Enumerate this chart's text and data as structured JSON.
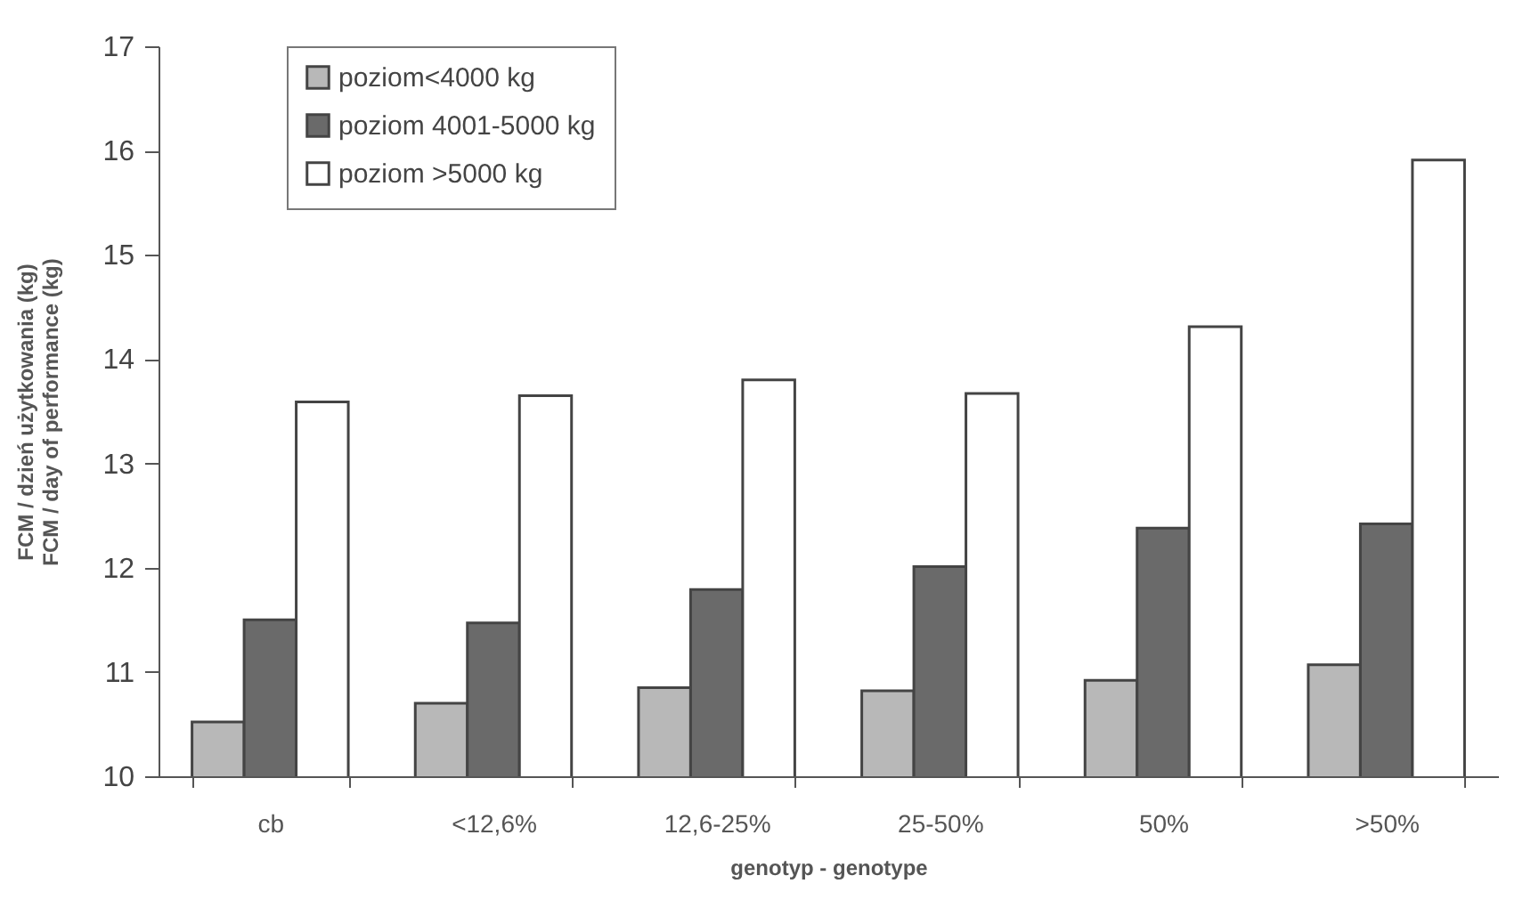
{
  "chart_data": {
    "type": "bar",
    "xlabel": "genotyp - genotype",
    "ylabel": "FCM / dzień użytkowania (kg)\nFCM / day of performance (kg)",
    "categories": [
      "cb",
      "<12,6%",
      "12,6-25%",
      "25-50%",
      "50%",
      ">50%"
    ],
    "series": [
      {
        "name": "poziom<4000 kg",
        "color": "#b8b8b8",
        "values": [
          10.52,
          10.7,
          10.85,
          10.82,
          10.92,
          11.07
        ]
      },
      {
        "name": "poziom 4001-5000 kg",
        "color": "#6a6a6a",
        "values": [
          11.5,
          11.47,
          11.79,
          12.01,
          12.38,
          12.42
        ]
      },
      {
        "name": "poziom >5000 kg",
        "color": "#ffffff",
        "values": [
          13.59,
          13.65,
          13.8,
          13.67,
          14.31,
          15.91
        ]
      }
    ],
    "ylim": [
      10,
      17
    ],
    "yticks": [
      10,
      11,
      12,
      13,
      14,
      15,
      16,
      17
    ],
    "grid": false,
    "legend": "top left"
  }
}
